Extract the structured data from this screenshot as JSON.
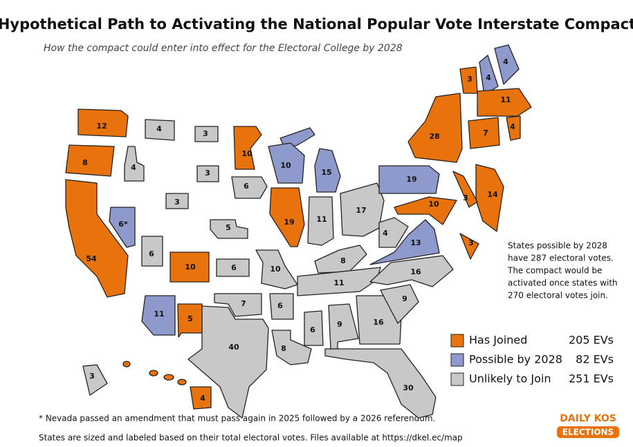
{
  "header": {
    "title": "Hypothetical Path to Activating the National Popular Vote Interstate Compact",
    "subtitle": "How the compact could enter into effect for the Electoral College by 2028"
  },
  "legend": [
    {
      "label": "Has Joined",
      "evs": "205 EVs",
      "color": "#e8720c"
    },
    {
      "label": "Possible by 2028",
      "evs": "82 EVs",
      "color": "#8e99cc"
    },
    {
      "label": "Unlikely to Join",
      "evs": "251 EVs",
      "color": "#c8c8c8"
    }
  ],
  "note": [
    "States possible by 2028",
    "have 287 electoral votes.",
    "The compact would be",
    "activated once states with",
    "270 electoral votes join."
  ],
  "footnotes": [
    "* Nevada passed an amendment that must pass again in 2025 followed by a 2026 referendum.",
    "States are sized and labeled based on their total electoral votes. Files available at https://dkel.ec/map"
  ],
  "logo": [
    "DAILY KOS",
    "ELECTIONS"
  ],
  "states": [
    {
      "ev": 12,
      "group": 0
    },
    {
      "ev": 8,
      "group": 0
    },
    {
      "ev": 54,
      "group": 0
    },
    {
      "ev": "6*",
      "group": 1
    },
    {
      "ev": 4,
      "group": 2
    },
    {
      "ev": 4,
      "group": 2
    },
    {
      "ev": 3,
      "group": 2
    },
    {
      "ev": 6,
      "group": 2
    },
    {
      "ev": 10,
      "group": 0
    },
    {
      "ev": 11,
      "group": 1
    },
    {
      "ev": 5,
      "group": 0
    },
    {
      "ev": 3,
      "group": 2
    },
    {
      "ev": 3,
      "group": 2
    },
    {
      "ev": 5,
      "group": 2
    },
    {
      "ev": 6,
      "group": 2
    },
    {
      "ev": 7,
      "group": 2
    },
    {
      "ev": 40,
      "group": 2
    },
    {
      "ev": 10,
      "group": 0
    },
    {
      "ev": 6,
      "group": 2
    },
    {
      "ev": 10,
      "group": 2
    },
    {
      "ev": 6,
      "group": 2
    },
    {
      "ev": 8,
      "group": 2
    },
    {
      "ev": 10,
      "group": 1
    },
    {
      "ev": 19,
      "group": 0
    },
    {
      "ev": 15,
      "group": 1
    },
    {
      "ev": 11,
      "group": 2
    },
    {
      "ev": 17,
      "group": 2
    },
    {
      "ev": 8,
      "group": 2
    },
    {
      "ev": 11,
      "group": 2
    },
    {
      "ev": 6,
      "group": 2
    },
    {
      "ev": 9,
      "group": 2
    },
    {
      "ev": 16,
      "group": 2
    },
    {
      "ev": 30,
      "group": 2
    },
    {
      "ev": 9,
      "group": 2
    },
    {
      "ev": 16,
      "group": 2
    },
    {
      "ev": 13,
      "group": 1
    },
    {
      "ev": 4,
      "group": 2
    },
    {
      "ev": 19,
      "group": 1
    },
    {
      "ev": 28,
      "group": 0
    },
    {
      "ev": 3,
      "group": 0
    },
    {
      "ev": 4,
      "group": 1
    },
    {
      "ev": 4,
      "group": 1
    },
    {
      "ev": 11,
      "group": 0
    },
    {
      "ev": 7,
      "group": 0
    },
    {
      "ev": 4,
      "group": 0
    },
    {
      "ev": 14,
      "group": 0
    },
    {
      "ev": 3,
      "group": 0
    },
    {
      "ev": 10,
      "group": 0
    },
    {
      "ev": 3,
      "group": 0
    },
    {
      "ev": 4,
      "group": 0
    },
    {
      "ev": 3,
      "group": 2
    }
  ]
}
